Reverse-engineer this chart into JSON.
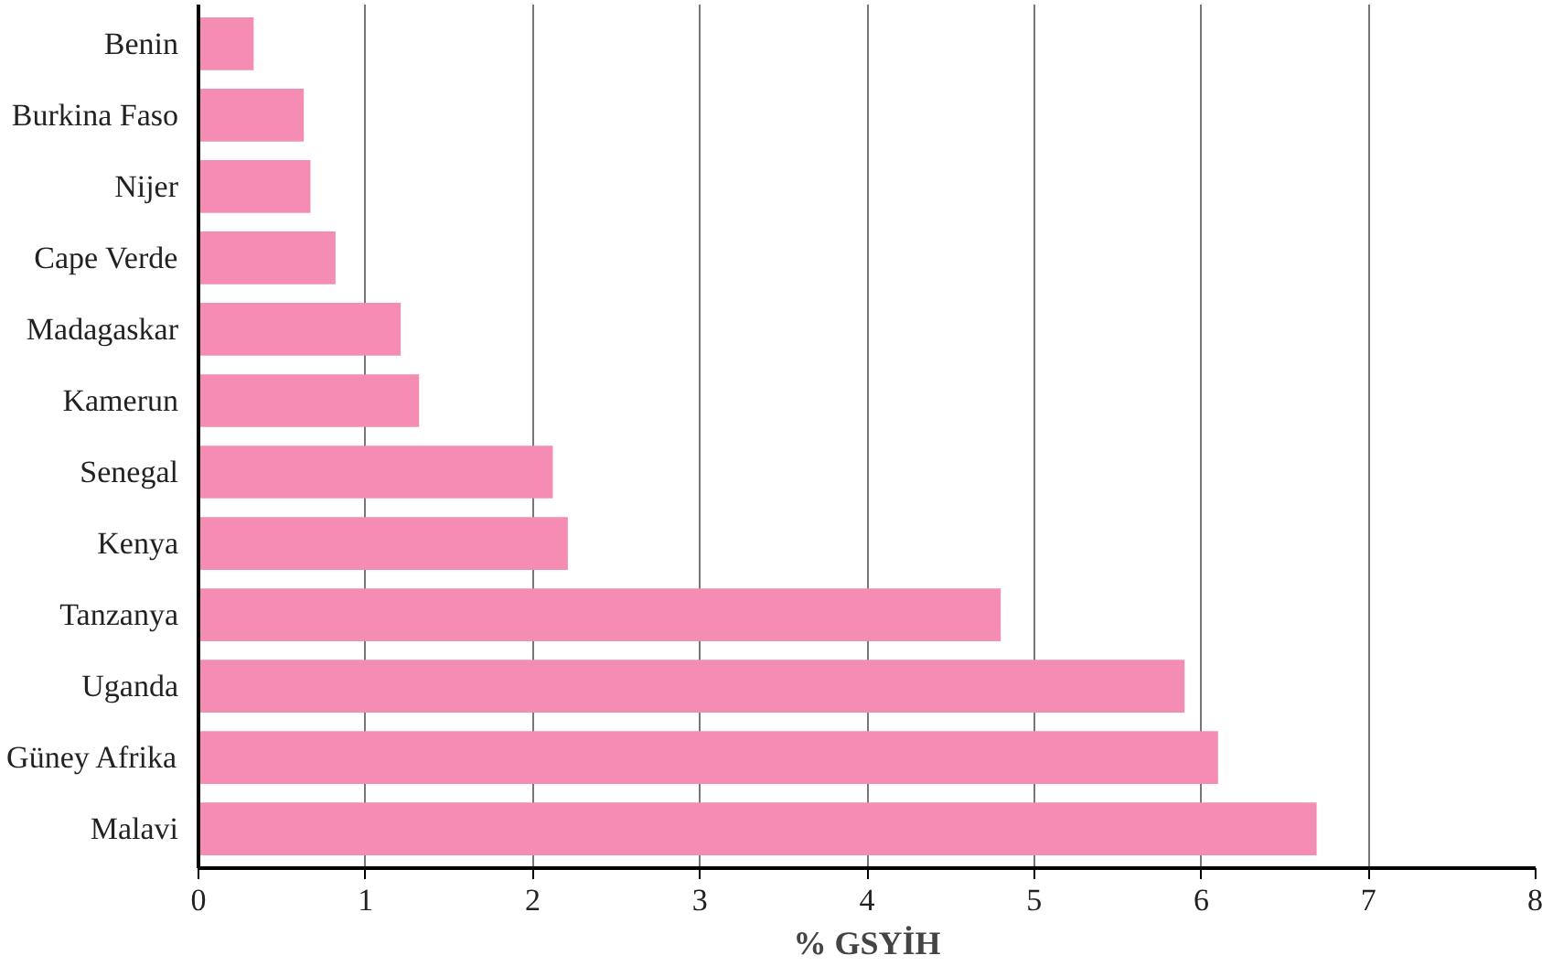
{
  "chart_data": {
    "type": "bar",
    "orientation": "horizontal",
    "xlabel": "% GSYİH",
    "categories": [
      "Benin",
      "Burkina Faso",
      "Nijer",
      "Cape Verde",
      "Madagaskar",
      "Kamerun",
      "Senegal",
      "Kenya",
      "Tanzanya",
      "Uganda",
      "Güney Afrika",
      "Malavi"
    ],
    "values": [
      0.33,
      0.63,
      0.67,
      0.82,
      1.21,
      1.32,
      2.12,
      2.21,
      4.8,
      5.9,
      6.1,
      6.69
    ],
    "color": "#f48cb3",
    "xlim": [
      0,
      8
    ],
    "xticks": [
      0,
      1,
      2,
      3,
      4,
      5,
      6,
      7,
      8
    ],
    "grid": "x"
  }
}
